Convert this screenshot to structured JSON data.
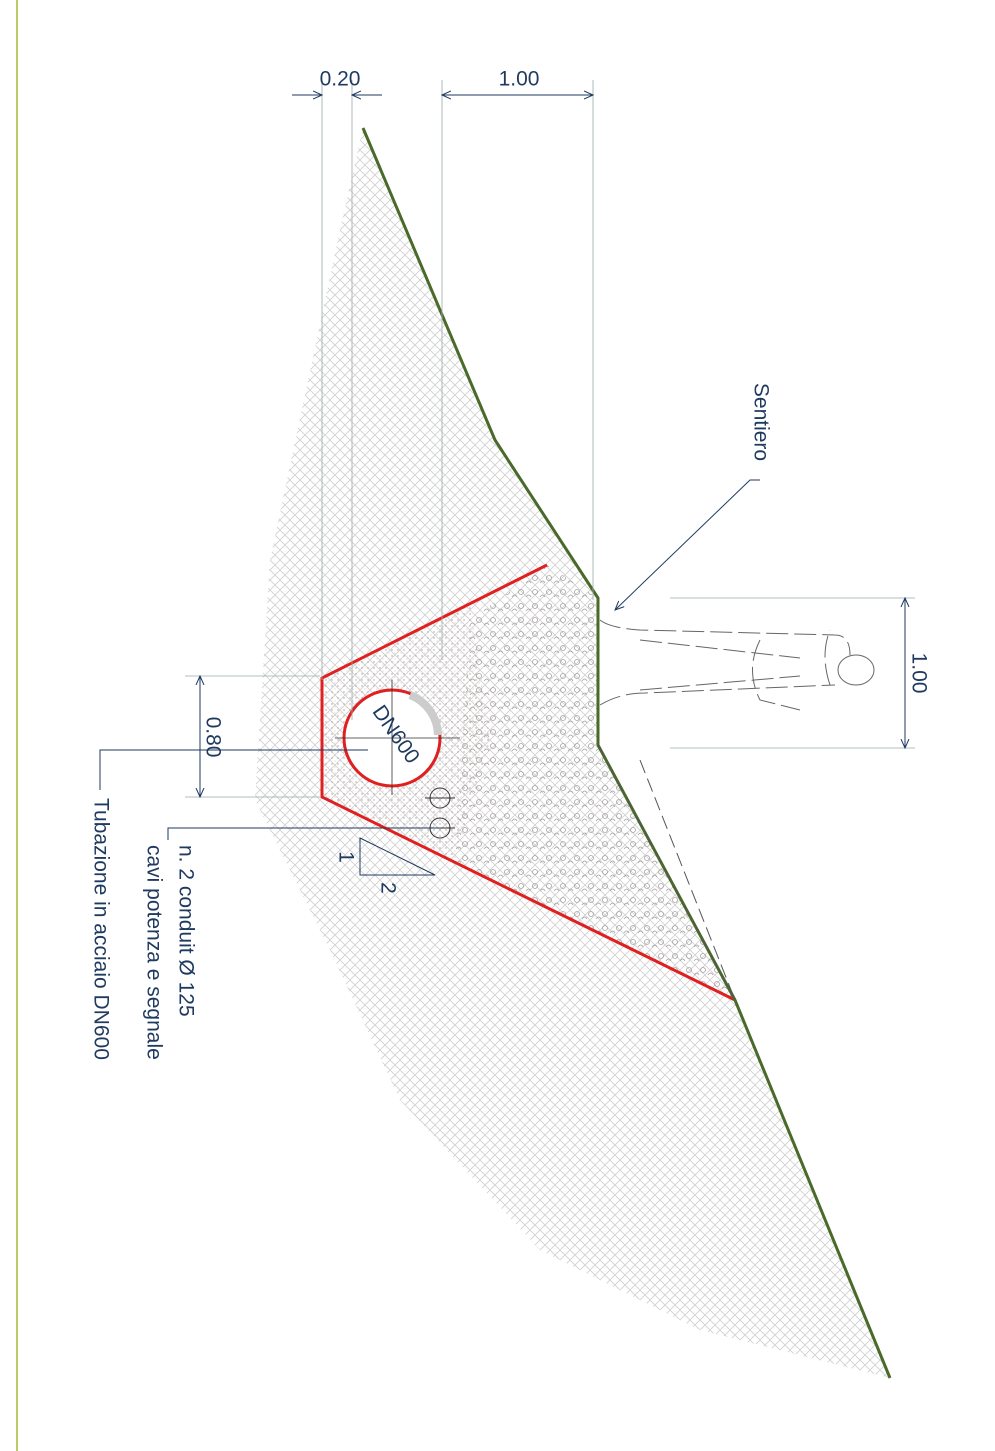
{
  "dimensions": {
    "cover": "0.20",
    "offset": "1.00",
    "person_height": "1.00",
    "trench_base": "0.80"
  },
  "labels": {
    "path": "Sentiero",
    "pipe": "DN600",
    "slope_v": "1",
    "slope_h": "2",
    "conduit_1": "n. 2 conduit Ø 125",
    "conduit_2": "cavi potenza e segnale",
    "pipe_note": "Tubazione in acciaio DN600"
  }
}
